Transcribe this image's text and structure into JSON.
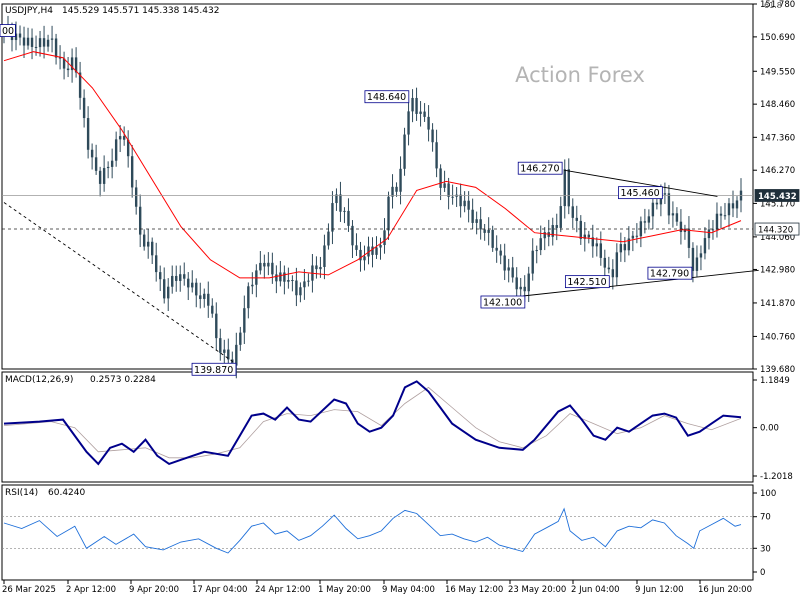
{
  "header": {
    "symbol": "USDJPY,H4",
    "ohlc": "145.529 145.571 145.338 145.432",
    "corner_tag": "61.8"
  },
  "watermark": "Action Forex",
  "chart_data": [
    {
      "type": "candlestick",
      "symbol": "USDJPY",
      "timeframe": "H4",
      "open": 145.529,
      "high": 145.571,
      "low": 145.338,
      "close": 145.432,
      "ylim": [
        139.68,
        151.78
      ],
      "y_ticks": [
        "151.780",
        "150.690",
        "149.550",
        "148.460",
        "147.360",
        "146.270",
        "145.170",
        "144.060",
        "142.980",
        "141.870",
        "140.760",
        "139.680"
      ],
      "x_ticks": [
        "26 Mar 2025",
        "2 Apr 12:00",
        "9 Apr 20:00",
        "17 Apr 04:00",
        "24 Apr 12:00",
        "1 May 20:00",
        "9 May 04:00",
        "16 May 12:00",
        "23 May 20:00",
        "2 Jun 04:00",
        "9 Jun 12:00",
        "16 Jun 20:00"
      ],
      "price_path": [
        [
          0,
          150.9
        ],
        [
          5,
          150.4
        ],
        [
          8,
          150.6
        ],
        [
          10,
          149.6
        ],
        [
          12,
          149.9
        ],
        [
          14,
          147.3
        ],
        [
          16,
          145.9
        ],
        [
          18,
          146.5
        ],
        [
          20,
          147.7
        ],
        [
          22,
          145.6
        ],
        [
          23,
          144.1
        ],
        [
          25,
          143.6
        ],
        [
          27,
          142.1
        ],
        [
          29,
          142.8
        ],
        [
          31,
          142.6
        ],
        [
          33,
          142.1
        ],
        [
          35,
          141.9
        ],
        [
          36,
          140.6
        ],
        [
          38,
          140.0
        ],
        [
          39,
          139.9
        ],
        [
          40,
          140.9
        ],
        [
          41,
          142.0
        ],
        [
          42,
          142.6
        ],
        [
          44,
          143.3
        ],
        [
          46,
          142.7
        ],
        [
          48,
          142.7
        ],
        [
          50,
          142.2
        ],
        [
          52,
          142.9
        ],
        [
          54,
          143.2
        ],
        [
          56,
          145.5
        ],
        [
          58,
          144.7
        ],
        [
          60,
          143.3
        ],
        [
          62,
          143.6
        ],
        [
          64,
          143.7
        ],
        [
          65,
          145.1
        ],
        [
          66,
          145.8
        ],
        [
          67,
          145.6
        ],
        [
          68,
          147.7
        ],
        [
          69,
          148.6
        ],
        [
          70,
          148.3
        ],
        [
          72,
          147.8
        ],
        [
          73,
          146.7
        ],
        [
          74,
          145.8
        ],
        [
          76,
          145.4
        ],
        [
          78,
          145.2
        ],
        [
          80,
          144.5
        ],
        [
          82,
          144.2
        ],
        [
          84,
          143.4
        ],
        [
          86,
          142.8
        ],
        [
          88,
          142.1
        ],
        [
          90,
          143.7
        ],
        [
          92,
          144.2
        ],
        [
          94,
          144.4
        ],
        [
          95,
          146.27
        ],
        [
          96,
          144.9
        ],
        [
          98,
          144.1
        ],
        [
          100,
          143.9
        ],
        [
          102,
          143.1
        ],
        [
          103,
          142.6
        ],
        [
          104,
          143.6
        ],
        [
          106,
          143.9
        ],
        [
          108,
          144.4
        ],
        [
          110,
          145.0
        ],
        [
          111,
          145.4
        ],
        [
          112,
          145.46
        ],
        [
          113,
          144.8
        ],
        [
          114,
          144.6
        ],
        [
          116,
          144.0
        ],
        [
          117,
          142.79
        ],
        [
          118,
          143.6
        ],
        [
          120,
          144.4
        ],
        [
          121,
          144.7
        ],
        [
          123,
          145.0
        ],
        [
          124,
          145.2
        ],
        [
          125,
          145.45
        ]
      ],
      "last_index": 125,
      "moving_average": {
        "name": "SMA",
        "color": "#ff0000",
        "points": [
          [
            0,
            149.9
          ],
          [
            5,
            150.2
          ],
          [
            10,
            150.0
          ],
          [
            15,
            149.0
          ],
          [
            20,
            147.6
          ],
          [
            25,
            146.0
          ],
          [
            30,
            144.4
          ],
          [
            35,
            143.3
          ],
          [
            40,
            142.7
          ],
          [
            45,
            142.7
          ],
          [
            50,
            142.9
          ],
          [
            55,
            142.8
          ],
          [
            60,
            143.3
          ],
          [
            65,
            144.0
          ],
          [
            70,
            145.6
          ],
          [
            75,
            145.9
          ],
          [
            80,
            145.7
          ],
          [
            85,
            145.0
          ],
          [
            90,
            144.2
          ],
          [
            95,
            144.1
          ],
          [
            100,
            144.0
          ],
          [
            105,
            143.9
          ],
          [
            110,
            144.1
          ],
          [
            115,
            144.3
          ],
          [
            120,
            144.2
          ],
          [
            125,
            144.6
          ]
        ]
      },
      "current_price_line": 145.432,
      "horizontal_level": 144.32,
      "price_labels": [
        {
          "text": "148.640",
          "index": 69,
          "price": 148.64,
          "side": "left"
        },
        {
          "text": "146.270",
          "index": 95,
          "price": 146.27,
          "side": "left"
        },
        {
          "text": "145.460",
          "index": 112,
          "price": 145.46,
          "side": "left"
        },
        {
          "text": "142.100",
          "index": 88,
          "price": 142.1,
          "side": "left-below"
        },
        {
          "text": "142.510",
          "index": 103,
          "price": 142.51,
          "side": "left"
        },
        {
          "text": "142.790",
          "index": 117,
          "price": 142.79,
          "side": "left"
        },
        {
          "text": "139.870",
          "index": 39,
          "price": 139.87,
          "side": "left-below"
        },
        {
          "text": "00",
          "index": 0,
          "price": 150.9,
          "side": "edge"
        }
      ],
      "right_badges": [
        {
          "text": "145.432",
          "price": 145.432,
          "style": "dark"
        },
        {
          "text": "144.320",
          "price": 144.32,
          "style": "light"
        }
      ],
      "trend_lines": [
        {
          "style": "dashed",
          "from": [
            0,
            145.2
          ],
          "to": [
            39,
            139.9
          ]
        },
        {
          "style": "solid",
          "from": [
            95,
            146.27
          ],
          "to": [
            121,
            145.4
          ]
        },
        {
          "style": "solid",
          "from": [
            88,
            142.1
          ],
          "to": [
            128,
            142.95
          ]
        }
      ]
    },
    {
      "type": "line",
      "name": "MACD(12,26,9)",
      "header_values": "0.2573 0.2284",
      "ylim": [
        -1.2018,
        1.1849
      ],
      "y_ticks": [
        "1.1849",
        "0.00",
        "-1.2018"
      ],
      "macd": [
        [
          0,
          0.1
        ],
        [
          6,
          0.15
        ],
        [
          10,
          0.2
        ],
        [
          14,
          -0.6
        ],
        [
          16,
          -0.9
        ],
        [
          18,
          -0.5
        ],
        [
          20,
          -0.4
        ],
        [
          22,
          -0.6
        ],
        [
          24,
          -0.3
        ],
        [
          26,
          -0.7
        ],
        [
          28,
          -0.9
        ],
        [
          30,
          -0.8
        ],
        [
          34,
          -0.6
        ],
        [
          38,
          -0.7
        ],
        [
          40,
          -0.2
        ],
        [
          42,
          0.3
        ],
        [
          44,
          0.35
        ],
        [
          46,
          0.2
        ],
        [
          48,
          0.5
        ],
        [
          50,
          0.2
        ],
        [
          52,
          0.15
        ],
        [
          56,
          0.7
        ],
        [
          58,
          0.6
        ],
        [
          60,
          0.1
        ],
        [
          62,
          -0.1
        ],
        [
          64,
          0.0
        ],
        [
          66,
          0.3
        ],
        [
          68,
          1.0
        ],
        [
          70,
          1.15
        ],
        [
          72,
          0.9
        ],
        [
          74,
          0.5
        ],
        [
          76,
          0.1
        ],
        [
          78,
          -0.1
        ],
        [
          80,
          -0.3
        ],
        [
          84,
          -0.5
        ],
        [
          88,
          -0.55
        ],
        [
          90,
          -0.3
        ],
        [
          94,
          0.4
        ],
        [
          96,
          0.55
        ],
        [
          98,
          0.2
        ],
        [
          100,
          -0.2
        ],
        [
          102,
          -0.3
        ],
        [
          104,
          0.0
        ],
        [
          106,
          -0.1
        ],
        [
          108,
          0.1
        ],
        [
          110,
          0.3
        ],
        [
          112,
          0.35
        ],
        [
          114,
          0.25
        ],
        [
          116,
          -0.2
        ],
        [
          118,
          -0.1
        ],
        [
          120,
          0.1
        ],
        [
          122,
          0.3
        ],
        [
          125,
          0.26
        ]
      ],
      "signal": [
        [
          0,
          0.05
        ],
        [
          8,
          0.15
        ],
        [
          12,
          0.0
        ],
        [
          16,
          -0.6
        ],
        [
          20,
          -0.55
        ],
        [
          24,
          -0.5
        ],
        [
          28,
          -0.75
        ],
        [
          32,
          -0.75
        ],
        [
          36,
          -0.65
        ],
        [
          40,
          -0.5
        ],
        [
          44,
          0.15
        ],
        [
          48,
          0.35
        ],
        [
          52,
          0.3
        ],
        [
          56,
          0.45
        ],
        [
          60,
          0.4
        ],
        [
          64,
          0.05
        ],
        [
          68,
          0.6
        ],
        [
          72,
          1.0
        ],
        [
          76,
          0.5
        ],
        [
          80,
          0.0
        ],
        [
          84,
          -0.35
        ],
        [
          88,
          -0.5
        ],
        [
          92,
          -0.2
        ],
        [
          96,
          0.35
        ],
        [
          100,
          0.1
        ],
        [
          104,
          -0.15
        ],
        [
          108,
          0.0
        ],
        [
          112,
          0.3
        ],
        [
          116,
          0.1
        ],
        [
          120,
          -0.05
        ],
        [
          125,
          0.23
        ]
      ]
    },
    {
      "type": "line",
      "name": "RSI(14)",
      "header_values": "60.4240",
      "ylim": [
        0,
        100
      ],
      "y_ticks": [
        "100",
        "70",
        "30",
        "0"
      ],
      "levels": [
        70,
        30
      ],
      "values": [
        [
          0,
          62
        ],
        [
          3,
          55
        ],
        [
          6,
          65
        ],
        [
          9,
          45
        ],
        [
          12,
          58
        ],
        [
          14,
          30
        ],
        [
          17,
          45
        ],
        [
          19,
          35
        ],
        [
          22,
          48
        ],
        [
          24,
          32
        ],
        [
          27,
          28
        ],
        [
          30,
          38
        ],
        [
          33,
          42
        ],
        [
          36,
          30
        ],
        [
          38,
          24
        ],
        [
          40,
          40
        ],
        [
          42,
          58
        ],
        [
          44,
          62
        ],
        [
          46,
          48
        ],
        [
          48,
          52
        ],
        [
          50,
          40
        ],
        [
          52,
          46
        ],
        [
          54,
          58
        ],
        [
          56,
          72
        ],
        [
          58,
          55
        ],
        [
          60,
          42
        ],
        [
          62,
          46
        ],
        [
          64,
          52
        ],
        [
          66,
          68
        ],
        [
          68,
          78
        ],
        [
          70,
          74
        ],
        [
          72,
          60
        ],
        [
          74,
          46
        ],
        [
          76,
          48
        ],
        [
          78,
          42
        ],
        [
          80,
          38
        ],
        [
          82,
          44
        ],
        [
          84,
          34
        ],
        [
          86,
          30
        ],
        [
          88,
          26
        ],
        [
          90,
          48
        ],
        [
          92,
          56
        ],
        [
          94,
          64
        ],
        [
          95,
          80
        ],
        [
          96,
          52
        ],
        [
          98,
          40
        ],
        [
          100,
          44
        ],
        [
          102,
          32
        ],
        [
          104,
          52
        ],
        [
          106,
          58
        ],
        [
          108,
          56
        ],
        [
          110,
          66
        ],
        [
          112,
          62
        ],
        [
          114,
          46
        ],
        [
          116,
          36
        ],
        [
          117,
          30
        ],
        [
          118,
          52
        ],
        [
          120,
          60
        ],
        [
          122,
          68
        ],
        [
          124,
          58
        ],
        [
          125,
          60
        ]
      ]
    }
  ]
}
